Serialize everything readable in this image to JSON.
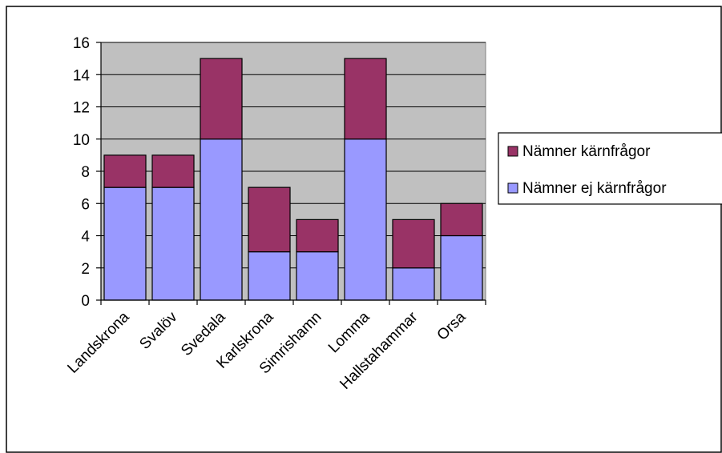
{
  "chart_data": {
    "type": "bar",
    "stacked": true,
    "categories": [
      "Landskrona",
      "Svalöv",
      "Svedala",
      "Karlskrona",
      "Simrishamn",
      "Lomma",
      "Hallstahammar",
      "Orsa"
    ],
    "series": [
      {
        "name": "Nämner ej kärnfrågor",
        "values": [
          7,
          7,
          10,
          3,
          3,
          10,
          2,
          4
        ],
        "color": "#9999ff"
      },
      {
        "name": "Nämner kärnfrågor",
        "values": [
          2,
          2,
          5,
          4,
          2,
          5,
          3,
          2
        ],
        "color": "#993366"
      }
    ],
    "legend_order": [
      1,
      0
    ],
    "title": "",
    "xlabel": "",
    "ylabel": "",
    "ylim": [
      0,
      16
    ],
    "y_ticks": [
      0,
      2,
      4,
      6,
      8,
      10,
      12,
      14,
      16
    ],
    "grid": true,
    "plot_background": "#c0c0c0",
    "legend_position": "right"
  }
}
